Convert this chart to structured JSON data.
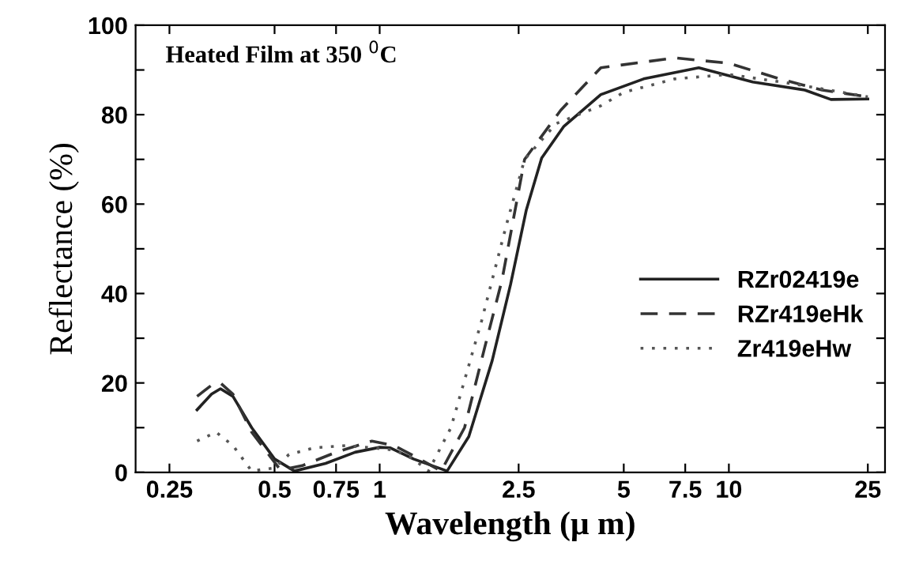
{
  "chart_data": {
    "type": "line",
    "xlabel": "Wavelength (μ m)",
    "ylabel": "Reflectance (%)",
    "annotations": [
      "Heated Film at 350 $^{0}$C"
    ],
    "log": "x",
    "xlim": [
      0.2,
      28
    ],
    "ylim": [
      0,
      100
    ],
    "xticks": [
      0.25,
      0.5,
      0.75,
      1,
      2.5,
      5,
      7.5,
      10,
      25
    ],
    "yticks": [
      0,
      {
        "value": 10,
        "label": null
      },
      20,
      {
        "value": 30,
        "label": null
      },
      40,
      {
        "value": 50,
        "label": null
      },
      60,
      {
        "value": 70,
        "label": null
      },
      80,
      {
        "value": 90,
        "label": null
      },
      100
    ],
    "grid": false,
    "legend": "right",
    "series": [
      {
        "name": "RZr02419e",
        "color": "#222222",
        "line_style": "solid",
        "x": [
          0.3,
          0.33,
          0.35,
          0.38,
          0.43,
          0.5,
          0.57,
          0.7,
          0.85,
          1.0,
          1.07,
          1.25,
          1.56,
          1.8,
          2.1,
          2.37,
          2.63,
          2.91,
          3.37,
          4.3,
          5.7,
          8.2,
          11.7,
          16.5,
          19.6,
          25
        ],
        "values": [
          14,
          17.5,
          18.7,
          17,
          10,
          3,
          0.3,
          2,
          4.5,
          5.6,
          5.5,
          3,
          0.3,
          8,
          25,
          42,
          58.7,
          70.3,
          77.4,
          84.5,
          88,
          90.5,
          87.3,
          85.5,
          83.4,
          83.5
        ]
      },
      {
        "name": "RZr419eHk",
        "color": "#333333",
        "line_style": "dashed",
        "x": [
          0.3,
          0.33,
          0.35,
          0.38,
          0.43,
          0.52,
          0.6,
          0.75,
          0.95,
          1.1,
          1.3,
          1.5,
          1.75,
          2.0,
          2.24,
          2.6,
          3.3,
          4.3,
          7.0,
          10,
          14,
          18.5,
          25
        ],
        "values": [
          17,
          19.5,
          20,
          17.5,
          9,
          0.5,
          1.5,
          4.5,
          7,
          6,
          3,
          0.3,
          10,
          28,
          43,
          70,
          81,
          90.5,
          92.7,
          91.5,
          88,
          85.5,
          84
        ]
      },
      {
        "name": "Zr419eHw",
        "color": "#555555",
        "line_style": "dotted",
        "x": [
          0.3,
          0.34,
          0.38,
          0.43,
          0.5,
          0.55,
          0.65,
          0.8,
          0.95,
          1.1,
          1.25,
          1.38,
          1.6,
          1.96,
          2.3,
          2.6,
          3.2,
          4.3,
          5,
          7,
          10,
          15,
          25
        ],
        "values": [
          7,
          9,
          6,
          0.3,
          1,
          4,
          5.5,
          6,
          5.5,
          5,
          3,
          0.3,
          10,
          34,
          55,
          70,
          78,
          82,
          85,
          88,
          89,
          87,
          84
        ]
      }
    ]
  }
}
